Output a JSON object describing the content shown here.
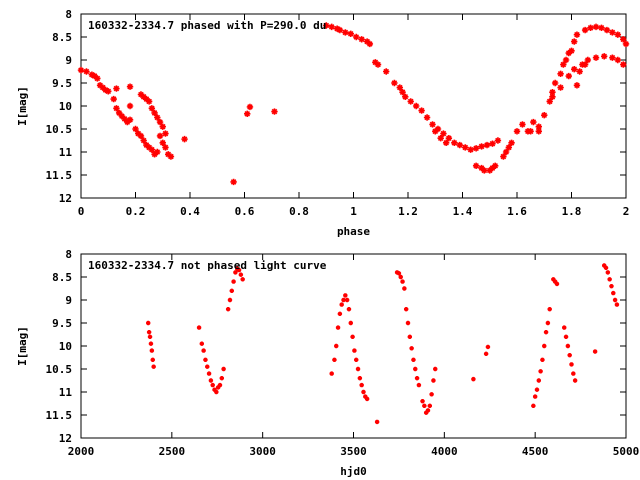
{
  "chart_data": [
    {
      "type": "scatter",
      "title": "160332-2334.7 phased with P=290.0 du",
      "xlabel": "phase",
      "ylabel": "I[mag]",
      "xlim": [
        0,
        2
      ],
      "ylim": [
        12,
        8
      ],
      "y_inverted": true,
      "xticks": [
        0,
        0.2,
        0.4,
        0.6,
        0.8,
        1,
        1.2,
        1.4,
        1.6,
        1.8,
        2
      ],
      "xtick_labels": [
        "0",
        "0.2",
        "0.4",
        "0.6",
        "0.8",
        "1",
        "1.2",
        "1.4",
        "1.6",
        "1.8",
        "2"
      ],
      "yticks": [
        8,
        8.5,
        9,
        9.5,
        10,
        10.5,
        11,
        11.5,
        12
      ],
      "ytick_labels": [
        "8",
        "8.5",
        "9",
        "9.5",
        "10",
        "10.5",
        "11",
        "11.5",
        "12"
      ],
      "grid": false,
      "legend": "none",
      "marker_color": "#ff0000",
      "series": [
        {
          "points": [
            [
              0.0,
              9.22
            ],
            [
              0.02,
              9.25
            ],
            [
              0.04,
              9.32
            ],
            [
              0.05,
              9.35
            ],
            [
              0.06,
              9.4
            ],
            [
              0.07,
              9.55
            ],
            [
              0.08,
              9.6
            ],
            [
              0.09,
              9.65
            ],
            [
              0.1,
              9.68
            ],
            [
              0.12,
              9.85
            ],
            [
              0.13,
              10.05
            ],
            [
              0.14,
              10.15
            ],
            [
              0.15,
              10.22
            ],
            [
              0.16,
              10.28
            ],
            [
              0.17,
              10.35
            ],
            [
              0.18,
              10.3
            ],
            [
              0.18,
              10.0
            ],
            [
              0.2,
              10.5
            ],
            [
              0.21,
              10.6
            ],
            [
              0.22,
              9.75
            ],
            [
              0.23,
              9.8
            ],
            [
              0.24,
              9.85
            ],
            [
              0.25,
              9.9
            ],
            [
              0.22,
              10.65
            ],
            [
              0.23,
              10.75
            ],
            [
              0.24,
              10.85
            ],
            [
              0.25,
              10.9
            ],
            [
              0.26,
              10.95
            ],
            [
              0.27,
              11.05
            ],
            [
              0.28,
              11.0
            ],
            [
              0.26,
              10.05
            ],
            [
              0.27,
              10.15
            ],
            [
              0.28,
              10.25
            ],
            [
              0.29,
              10.35
            ],
            [
              0.3,
              10.45
            ],
            [
              0.31,
              10.6
            ],
            [
              0.32,
              11.05
            ],
            [
              0.33,
              11.1
            ],
            [
              0.3,
              10.8
            ],
            [
              0.31,
              10.9
            ],
            [
              0.29,
              10.65
            ],
            [
              0.13,
              9.62
            ],
            [
              0.18,
              9.58
            ],
            [
              0.38,
              10.72
            ],
            [
              0.56,
              11.65
            ],
            [
              0.61,
              10.17
            ],
            [
              0.62,
              10.02
            ],
            [
              0.71,
              10.12
            ],
            [
              0.9,
              8.25
            ],
            [
              0.92,
              8.28
            ],
            [
              0.94,
              8.32
            ],
            [
              0.95,
              8.35
            ],
            [
              0.97,
              8.4
            ],
            [
              0.99,
              8.43
            ],
            [
              1.01,
              8.5
            ],
            [
              1.03,
              8.55
            ],
            [
              1.05,
              8.6
            ],
            [
              1.06,
              8.65
            ],
            [
              1.08,
              9.05
            ],
            [
              1.09,
              9.1
            ],
            [
              1.12,
              9.25
            ],
            [
              1.15,
              9.5
            ],
            [
              1.17,
              9.6
            ],
            [
              1.18,
              9.7
            ],
            [
              1.19,
              9.8
            ],
            [
              1.21,
              9.9
            ],
            [
              1.23,
              10.0
            ],
            [
              1.25,
              10.1
            ],
            [
              1.27,
              10.25
            ],
            [
              1.29,
              10.4
            ],
            [
              1.31,
              10.5
            ],
            [
              1.33,
              10.6
            ],
            [
              1.35,
              10.7
            ],
            [
              1.37,
              10.8
            ],
            [
              1.39,
              10.85
            ],
            [
              1.41,
              10.9
            ],
            [
              1.43,
              10.95
            ],
            [
              1.45,
              10.92
            ],
            [
              1.47,
              10.88
            ],
            [
              1.49,
              10.85
            ],
            [
              1.51,
              10.82
            ],
            [
              1.53,
              10.75
            ],
            [
              1.3,
              10.55
            ],
            [
              1.32,
              10.7
            ],
            [
              1.34,
              10.8
            ],
            [
              1.45,
              11.3
            ],
            [
              1.47,
              11.35
            ],
            [
              1.48,
              11.4
            ],
            [
              1.5,
              11.4
            ],
            [
              1.51,
              11.35
            ],
            [
              1.52,
              11.3
            ],
            [
              1.55,
              11.1
            ],
            [
              1.56,
              11.0
            ],
            [
              1.57,
              10.9
            ],
            [
              1.58,
              10.8
            ],
            [
              1.6,
              10.55
            ],
            [
              1.62,
              10.4
            ],
            [
              1.64,
              10.55
            ],
            [
              1.68,
              10.55
            ],
            [
              1.7,
              10.2
            ],
            [
              1.72,
              9.9
            ],
            [
              1.73,
              9.7
            ],
            [
              1.74,
              9.5
            ],
            [
              1.76,
              9.3
            ],
            [
              1.77,
              9.1
            ],
            [
              1.79,
              8.85
            ],
            [
              1.81,
              8.6
            ],
            [
              1.82,
              8.45
            ],
            [
              1.85,
              8.35
            ],
            [
              1.87,
              8.3
            ],
            [
              1.89,
              8.28
            ],
            [
              1.91,
              8.3
            ],
            [
              1.93,
              8.35
            ],
            [
              1.95,
              8.4
            ],
            [
              1.97,
              8.45
            ],
            [
              1.99,
              8.55
            ],
            [
              2.0,
              8.65
            ],
            [
              1.73,
              9.8
            ],
            [
              1.76,
              9.6
            ],
            [
              1.79,
              9.35
            ],
            [
              1.81,
              9.2
            ],
            [
              1.84,
              9.1
            ],
            [
              1.86,
              9.0
            ],
            [
              1.89,
              8.95
            ],
            [
              1.92,
              8.92
            ],
            [
              1.95,
              8.95
            ],
            [
              1.97,
              9.0
            ],
            [
              1.99,
              9.1
            ],
            [
              1.78,
              9.0
            ],
            [
              1.8,
              8.8
            ],
            [
              1.83,
              9.25
            ],
            [
              1.85,
              9.1
            ],
            [
              1.66,
              10.35
            ],
            [
              1.68,
              10.45
            ],
            [
              1.82,
              9.55
            ],
            [
              1.65,
              10.55
            ]
          ]
        }
      ]
    },
    {
      "type": "scatter",
      "title": "160332-2334.7 not phased light curve",
      "xlabel": "hjd0",
      "ylabel": "I[mag]",
      "xlim": [
        2000,
        5000
      ],
      "ylim": [
        12,
        8
      ],
      "y_inverted": true,
      "xticks": [
        2000,
        2500,
        3000,
        3500,
        4000,
        4500,
        5000
      ],
      "xtick_labels": [
        "2000",
        "2500",
        "3000",
        "3500",
        "4000",
        "4500",
        "5000"
      ],
      "yticks": [
        8,
        8.5,
        9,
        9.5,
        10,
        10.5,
        11,
        11.5,
        12
      ],
      "ytick_labels": [
        "8",
        "8.5",
        "9",
        "9.5",
        "10",
        "10.5",
        "11",
        "11.5",
        "12"
      ],
      "grid": false,
      "legend": "none",
      "marker_color": "#ff0000",
      "series": [
        {
          "points": [
            [
              2370,
              9.5
            ],
            [
              2375,
              9.7
            ],
            [
              2380,
              9.8
            ],
            [
              2385,
              9.95
            ],
            [
              2390,
              10.1
            ],
            [
              2395,
              10.3
            ],
            [
              2400,
              10.45
            ],
            [
              2650,
              9.6
            ],
            [
              2665,
              9.95
            ],
            [
              2675,
              10.1
            ],
            [
              2685,
              10.3
            ],
            [
              2695,
              10.45
            ],
            [
              2705,
              10.6
            ],
            [
              2715,
              10.75
            ],
            [
              2725,
              10.85
            ],
            [
              2735,
              10.95
            ],
            [
              2745,
              11.0
            ],
            [
              2755,
              10.9
            ],
            [
              2765,
              10.85
            ],
            [
              2775,
              10.7
            ],
            [
              2785,
              10.5
            ],
            [
              2810,
              9.2
            ],
            [
              2820,
              9.0
            ],
            [
              2830,
              8.8
            ],
            [
              2840,
              8.6
            ],
            [
              2850,
              8.4
            ],
            [
              2860,
              8.32
            ],
            [
              2870,
              8.35
            ],
            [
              2880,
              8.45
            ],
            [
              2890,
              8.55
            ],
            [
              3380,
              10.6
            ],
            [
              3395,
              10.3
            ],
            [
              3405,
              10.0
            ],
            [
              3415,
              9.6
            ],
            [
              3425,
              9.3
            ],
            [
              3435,
              9.1
            ],
            [
              3445,
              9.0
            ],
            [
              3455,
              8.9
            ],
            [
              3465,
              9.0
            ],
            [
              3475,
              9.2
            ],
            [
              3485,
              9.5
            ],
            [
              3495,
              9.8
            ],
            [
              3505,
              10.1
            ],
            [
              3515,
              10.3
            ],
            [
              3525,
              10.5
            ],
            [
              3535,
              10.7
            ],
            [
              3545,
              10.85
            ],
            [
              3555,
              11.0
            ],
            [
              3565,
              11.1
            ],
            [
              3575,
              11.15
            ],
            [
              3630,
              11.65
            ],
            [
              3740,
              8.4
            ],
            [
              3750,
              8.42
            ],
            [
              3760,
              8.5
            ],
            [
              3770,
              8.6
            ],
            [
              3780,
              8.75
            ],
            [
              3790,
              9.2
            ],
            [
              3800,
              9.5
            ],
            [
              3810,
              9.8
            ],
            [
              3820,
              10.05
            ],
            [
              3830,
              10.3
            ],
            [
              3840,
              10.5
            ],
            [
              3850,
              10.7
            ],
            [
              3860,
              10.85
            ],
            [
              3880,
              11.2
            ],
            [
              3890,
              11.3
            ],
            [
              3900,
              11.45
            ],
            [
              3910,
              11.4
            ],
            [
              3920,
              11.3
            ],
            [
              3930,
              11.05
            ],
            [
              3940,
              10.75
            ],
            [
              3950,
              10.5
            ],
            [
              4160,
              10.72
            ],
            [
              4230,
              10.17
            ],
            [
              4240,
              10.02
            ],
            [
              4490,
              11.3
            ],
            [
              4500,
              11.1
            ],
            [
              4510,
              10.95
            ],
            [
              4520,
              10.75
            ],
            [
              4530,
              10.55
            ],
            [
              4540,
              10.3
            ],
            [
              4550,
              10.0
            ],
            [
              4560,
              9.7
            ],
            [
              4570,
              9.5
            ],
            [
              4580,
              9.2
            ],
            [
              4600,
              8.55
            ],
            [
              4610,
              8.6
            ],
            [
              4620,
              8.65
            ],
            [
              4660,
              9.6
            ],
            [
              4670,
              9.8
            ],
            [
              4680,
              10.0
            ],
            [
              4690,
              10.2
            ],
            [
              4700,
              10.4
            ],
            [
              4710,
              10.6
            ],
            [
              4720,
              10.75
            ],
            [
              4830,
              10.12
            ],
            [
              4880,
              8.25
            ],
            [
              4890,
              8.3
            ],
            [
              4900,
              8.4
            ],
            [
              4910,
              8.55
            ],
            [
              4920,
              8.7
            ],
            [
              4930,
              8.85
            ],
            [
              4940,
              9.0
            ],
            [
              4950,
              9.1
            ]
          ]
        }
      ]
    }
  ]
}
